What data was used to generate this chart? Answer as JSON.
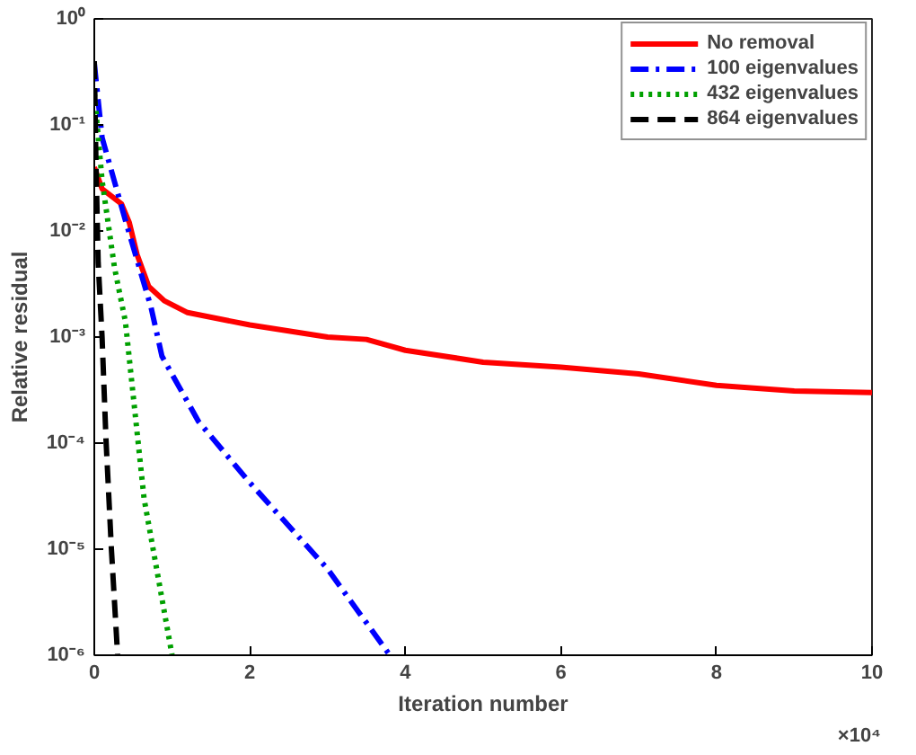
{
  "chart_data": {
    "type": "line",
    "xlabel": "Iteration number",
    "ylabel": "Relative residual",
    "log": "y",
    "xlim": [
      0,
      10
    ],
    "ylim": [
      1e-06,
      1
    ],
    "xticks": [
      0,
      2,
      4,
      6,
      8,
      10
    ],
    "yticks": [
      {
        "value": 1e-06,
        "label": "10⁻⁶"
      },
      {
        "value": 1e-05,
        "label": "10⁻⁵"
      },
      {
        "value": 0.0001,
        "label": "10⁻⁴"
      },
      {
        "value": 0.001,
        "label": "10⁻³"
      },
      {
        "value": 0.01,
        "label": "10⁻²"
      },
      {
        "value": 0.1,
        "label": "10⁻¹"
      },
      {
        "value": 1,
        "label": "10⁰"
      }
    ],
    "annotations": [
      "×10⁴"
    ],
    "legend": "top right",
    "grid": false,
    "marker": "none",
    "series": [
      {
        "name": "No removal",
        "color": "#ff0000",
        "line_style": "solid",
        "x": [
          0,
          0.1,
          0.35,
          0.45,
          0.55,
          0.7,
          0.9,
          1.2,
          2,
          3,
          3.5,
          4,
          5,
          6,
          7,
          8,
          9,
          10
        ],
        "values": [
          0.04,
          0.025,
          0.018,
          0.012,
          0.006,
          0.003,
          0.0022,
          0.0017,
          0.0013,
          0.001,
          0.00095,
          0.00075,
          0.00058,
          0.00052,
          0.00045,
          0.00035,
          0.00031,
          0.0003
        ]
      },
      {
        "name": "100 eigenvalues",
        "color": "#0000ff",
        "line_style": "dashdot",
        "x": [
          0,
          0.1,
          0.4,
          0.73,
          0.87,
          1.34,
          1.98,
          3.0,
          3.8
        ],
        "values": [
          0.38,
          0.076,
          0.0126,
          0.0019,
          0.00066,
          0.00016,
          4.4e-05,
          6.5e-06,
          1e-06
        ]
      },
      {
        "name": "432 eigenvalues",
        "color": "#00a000",
        "line_style": "dotted",
        "x": [
          0,
          0.1,
          0.26,
          0.4,
          0.64,
          1.0
        ],
        "values": [
          0.2,
          0.03,
          0.0045,
          0.0014,
          3e-05,
          1e-06
        ]
      },
      {
        "name": "864 eigenvalues",
        "color": "#000000",
        "line_style": "dashed",
        "x": [
          0,
          0.02,
          0.05,
          0.1,
          0.15,
          0.22,
          0.3
        ],
        "values": [
          0.4,
          0.05,
          0.005,
          0.001,
          0.00011,
          1e-05,
          1e-06
        ]
      }
    ]
  }
}
